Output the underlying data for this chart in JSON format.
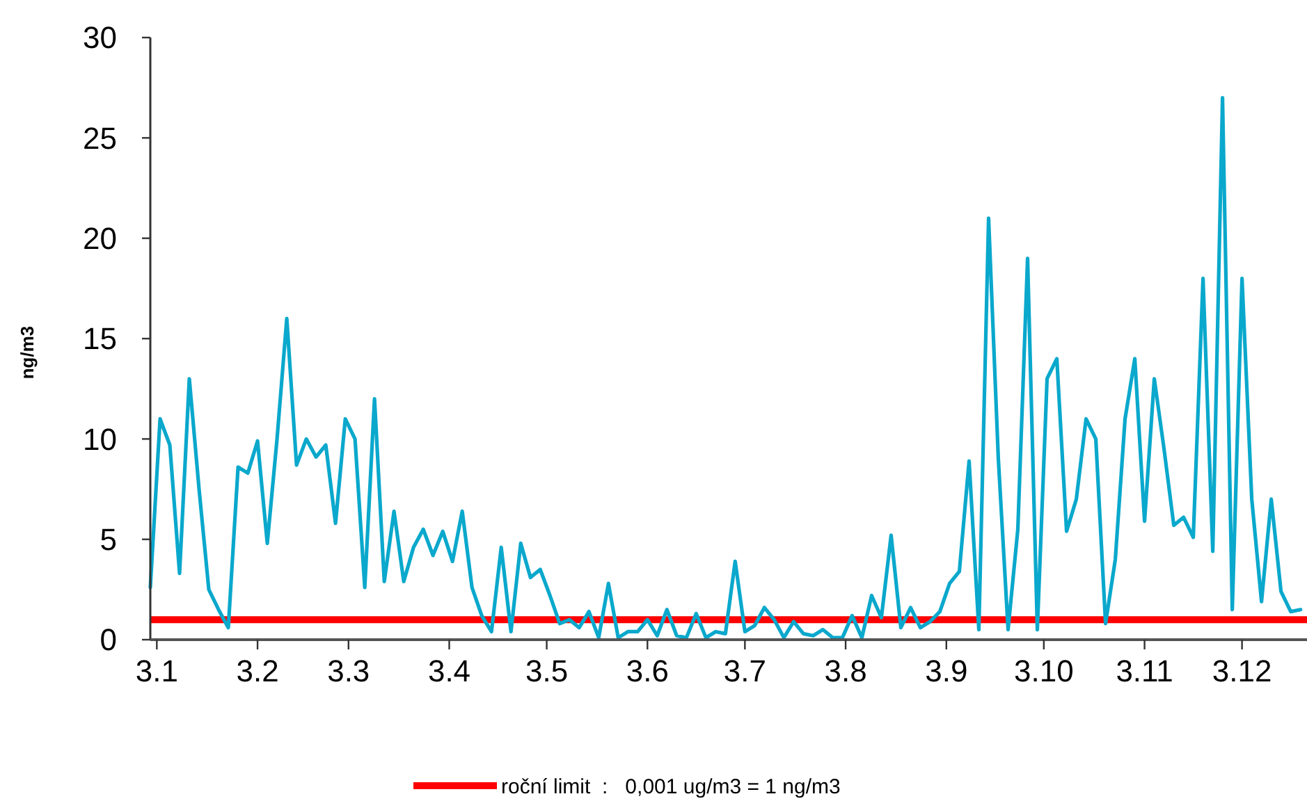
{
  "chart_data": {
    "type": "line",
    "ylabel": "ng/m3",
    "xlim": [
      "--01-01",
      "--12-23"
    ],
    "xticks": [
      {
        "value": "--01-03",
        "label": "3.1"
      },
      {
        "value": "--02-03",
        "label": "3.2"
      },
      {
        "value": "--03-03",
        "label": "3.3"
      },
      {
        "value": "--04-03",
        "label": "3.4"
      },
      {
        "value": "--05-03",
        "label": "3.5"
      },
      {
        "value": "--06-03",
        "label": "3.6"
      },
      {
        "value": "--07-03",
        "label": "3.7"
      },
      {
        "value": "--08-03",
        "label": "3.8"
      },
      {
        "value": "--09-03",
        "label": "3.9"
      },
      {
        "value": "--10-03",
        "label": "3.10"
      },
      {
        "value": "--11-03",
        "label": "3.11"
      },
      {
        "value": "--12-03",
        "label": "3.12"
      }
    ],
    "ylim": [
      0,
      30
    ],
    "yticks": [
      0,
      5,
      10,
      15,
      20,
      25,
      30
    ],
    "grid": false,
    "legend": "bottom",
    "line_style": "solid",
    "marker": "none",
    "x": [
      "--01-01",
      "--01-04",
      "--01-07",
      "--01-10",
      "--01-13",
      "--01-16",
      "--01-19",
      "--01-22",
      "--01-25",
      "--01-28",
      "--01-31",
      "--02-03",
      "--02-06",
      "--02-09",
      "--02-12",
      "--02-15",
      "--02-18",
      "--02-21",
      "--02-24",
      "--02-27",
      "--03-02",
      "--03-05",
      "--03-08",
      "--03-11",
      "--03-14",
      "--03-17",
      "--03-20",
      "--03-23",
      "--03-26",
      "--03-29",
      "--04-01",
      "--04-04",
      "--04-07",
      "--04-10",
      "--04-13",
      "--04-16",
      "--04-19",
      "--04-22",
      "--04-25",
      "--04-28",
      "--05-01",
      "--05-04",
      "--05-07",
      "--05-10",
      "--05-13",
      "--05-16",
      "--05-19",
      "--05-22",
      "--05-25",
      "--05-28",
      "--05-31",
      "--06-03",
      "--06-06",
      "--06-09",
      "--06-12",
      "--06-15",
      "--06-18",
      "--06-21",
      "--06-24",
      "--06-27",
      "--06-30",
      "--07-03",
      "--07-06",
      "--07-09",
      "--07-12",
      "--07-15",
      "--07-18",
      "--07-21",
      "--07-24",
      "--07-27",
      "--07-30",
      "--08-02",
      "--08-05",
      "--08-08",
      "--08-11",
      "--08-14",
      "--08-17",
      "--08-20",
      "--08-23",
      "--08-26",
      "--08-29",
      "--09-01",
      "--09-04",
      "--09-07",
      "--09-10",
      "--09-13",
      "--09-16",
      "--09-19",
      "--09-22",
      "--09-25",
      "--09-28",
      "--10-01",
      "--10-04",
      "--10-07",
      "--10-10",
      "--10-13",
      "--10-16",
      "--10-19",
      "--10-22",
      "--10-25",
      "--10-28",
      "--10-31",
      "--11-03",
      "--11-06",
      "--11-09",
      "--11-12",
      "--11-15",
      "--11-18",
      "--11-21",
      "--11-24",
      "--11-27",
      "--11-30",
      "--12-03",
      "--12-06",
      "--12-09",
      "--12-12",
      "--12-15",
      "--12-18",
      "--12-21"
    ],
    "series": [
      {
        "color": "#0aa8cc",
        "values": [
          2.6,
          11,
          9.7,
          3.3,
          13,
          7.5,
          2.5,
          1.5,
          0.6,
          8.6,
          8.3,
          9.9,
          4.8,
          10,
          16,
          8.7,
          10,
          9.1,
          9.7,
          5.8,
          11,
          10,
          2.6,
          12,
          2.9,
          6.4,
          2.9,
          4.6,
          5.5,
          4.2,
          5.4,
          3.9,
          6.4,
          2.6,
          1.2,
          0.4,
          4.6,
          0.4,
          4.8,
          3.1,
          3.5,
          2.2,
          0.8,
          1.0,
          0.6,
          1.4,
          0.1,
          2.8,
          0.1,
          0.4,
          0.4,
          1.0,
          0.2,
          1.5,
          0.2,
          0.1,
          1.3,
          0.1,
          0.4,
          0.3,
          3.9,
          0.4,
          0.7,
          1.6,
          1.0,
          0.1,
          0.9,
          0.3,
          0.2,
          0.5,
          0.1,
          0.1,
          1.2,
          0.1,
          2.2,
          1.1,
          5.2,
          0.6,
          1.6,
          0.6,
          0.9,
          1.4,
          2.8,
          3.4,
          8.9,
          0.5,
          21,
          9,
          0.5,
          5.5,
          19,
          0.5,
          13,
          14,
          5.4,
          7,
          11,
          10,
          0.8,
          4,
          11,
          14,
          5.9,
          13,
          9.5,
          5.7,
          6.1,
          5.1,
          18,
          4.4,
          27,
          1.5,
          18,
          7,
          1.9,
          7,
          2.4,
          1.4,
          1.5
        ]
      }
    ],
    "ref_lines": [
      {
        "axis": "y",
        "value": 1,
        "label": "roční limit  :   0,001 ug/m3 = 1 ng/m3",
        "color": "#ff0000",
        "line_style": "solid"
      }
    ]
  }
}
